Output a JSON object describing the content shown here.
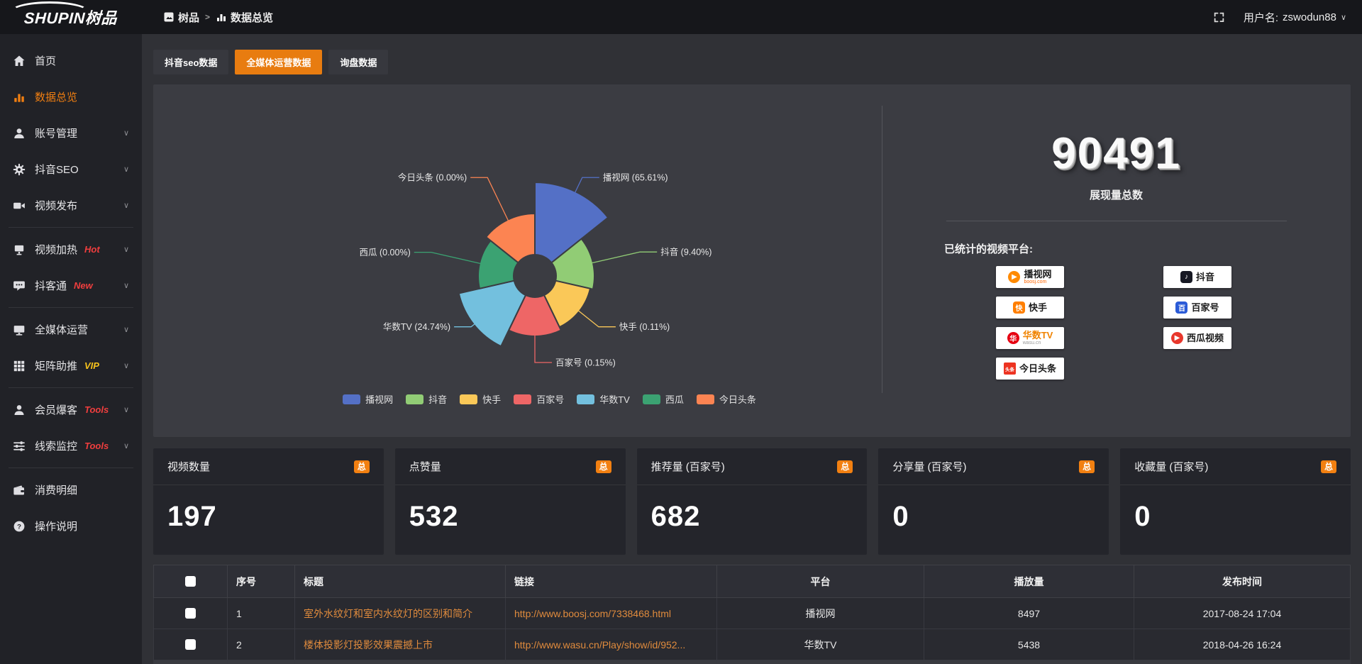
{
  "topbar": {
    "logo_text": "SHUPIN树品",
    "breadcrumb": {
      "root": "树品",
      "separator": ">",
      "current": "数据总览"
    },
    "user_label": "用户名:",
    "username": "zswodun88",
    "user_caret": "∨"
  },
  "sidebar": {
    "items": [
      {
        "id": "home",
        "icon": "home-icon",
        "label": "首页"
      },
      {
        "id": "data-overview",
        "icon": "bar-chart-icon",
        "label": "数据总览",
        "active": true
      },
      {
        "id": "account-manage",
        "icon": "user-icon",
        "label": "账号管理",
        "chevron": true
      },
      {
        "id": "douyin-seo",
        "icon": "gear-icon",
        "label": "抖音SEO",
        "chevron": true
      },
      {
        "id": "video-publish",
        "icon": "video-camera-icon",
        "label": "视频发布",
        "chevron": true,
        "divider_after": true
      },
      {
        "id": "video-heat",
        "icon": "display-icon",
        "label": "视频加热",
        "badge": "Hot",
        "badge_color": "#f03e3e",
        "chevron": true
      },
      {
        "id": "douketong",
        "icon": "chat-icon",
        "label": "抖客通",
        "badge": "New",
        "badge_color": "#f03e3e",
        "chevron": true,
        "divider_after": true
      },
      {
        "id": "omni-media",
        "icon": "monitor-icon",
        "label": "全媒体运营",
        "chevron": true
      },
      {
        "id": "matrix-boost",
        "icon": "grid-icon",
        "label": "矩阵助推",
        "badge": "VIP",
        "badge_color": "#f6c21c",
        "chevron": true,
        "divider_after": true
      },
      {
        "id": "member-baoke",
        "icon": "member-icon",
        "label": "会员爆客",
        "badge": "Tools",
        "badge_color": "#f03e3e",
        "chevron": true
      },
      {
        "id": "clue-monitor",
        "icon": "sliders-icon",
        "label": "线索监控",
        "badge": "Tools",
        "badge_color": "#f03e3e",
        "chevron": true,
        "divider_after": true
      },
      {
        "id": "expense-detail",
        "icon": "wallet-icon",
        "label": "消费明细"
      },
      {
        "id": "help-guide",
        "icon": "help-icon",
        "label": "操作说明"
      }
    ]
  },
  "tabs": {
    "items": [
      {
        "id": "douyin-seo-data",
        "label": "抖音seo数据",
        "active": false
      },
      {
        "id": "omni-media-data",
        "label": "全媒体运营数据",
        "active": true
      },
      {
        "id": "inquiry-data",
        "label": "询盘数据",
        "active": false
      }
    ]
  },
  "chart_data": {
    "type": "pie",
    "subtype": "nightingale-rose-donut",
    "legend_position": "bottom",
    "label_format": "{name} ({percent}%)",
    "items": [
      {
        "name": "播视网",
        "percent": 65.61,
        "color": "#5470c6",
        "display_radius": 132
      },
      {
        "name": "抖音",
        "percent": 9.4,
        "color": "#91cc75",
        "display_radius": 84
      },
      {
        "name": "快手",
        "percent": 0.11,
        "color": "#fac858",
        "display_radius": 80
      },
      {
        "name": "百家号",
        "percent": 0.15,
        "color": "#ee6666",
        "display_radius": 85
      },
      {
        "name": "华数TV",
        "percent": 24.74,
        "color": "#73c0de",
        "display_radius": 110
      },
      {
        "name": "西瓜",
        "percent": 0.0,
        "color": "#3ba272",
        "display_radius": 80
      },
      {
        "name": "今日头条",
        "percent": 0.0,
        "color": "#fc8452",
        "display_radius": 88
      }
    ]
  },
  "summary": {
    "total_value": "90491",
    "total_label": "展现量总数",
    "platforms_title": "已统计的视频平台:",
    "platforms": [
      {
        "name": "播视网",
        "sub": "boosj.com",
        "sub_color": "#ff6600",
        "icon": "boosj-play-icon",
        "glyph": "▶",
        "color": "#ff8a00",
        "shape": "circle"
      },
      {
        "name": "抖音",
        "icon": "douyin-note-icon",
        "glyph": "♪",
        "color": "#161823",
        "shape": "rounded"
      },
      {
        "name": "快手",
        "icon": "kuaishou-icon",
        "glyph": "快",
        "color": "#ff7f00",
        "shape": "rounded"
      },
      {
        "name": "百家号",
        "icon": "baijiahao-icon",
        "glyph": "百",
        "color": "#2b5bd7",
        "shape": "rounded"
      },
      {
        "name": "华数TV",
        "name_color": "#f08300",
        "sub": "wasu.cn",
        "sub_color": "#999999",
        "icon": "wasu-icon",
        "glyph": "华",
        "color": "#e60012",
        "shape": "circle"
      },
      {
        "name": "西瓜视频",
        "icon": "xigua-play-icon",
        "glyph": "▶",
        "color": "#e8372c",
        "shape": "circle"
      },
      {
        "name": "今日头条",
        "icon": "toutiao-icon",
        "glyph": "头条",
        "color": "#ed3321",
        "shape": "square"
      }
    ]
  },
  "stat_cards": [
    {
      "title": "视频数量",
      "tag": "总",
      "value": "197"
    },
    {
      "title": "点赞量",
      "tag": "总",
      "value": "532"
    },
    {
      "title": "推荐量 (百家号)",
      "tag": "总",
      "value": "682"
    },
    {
      "title": "分享量 (百家号)",
      "tag": "总",
      "value": "0"
    },
    {
      "title": "收藏量 (百家号)",
      "tag": "总",
      "value": "0"
    }
  ],
  "table": {
    "headers": [
      "序号",
      "标题",
      "链接",
      "平台",
      "播放量",
      "发布时间"
    ],
    "rows": [
      {
        "seq": "1",
        "title": "室外水纹灯和室内水纹灯的区别和简介",
        "link": "http://www.boosj.com/7338468.html",
        "platform": "播视网",
        "views": "8497",
        "time": "2017-08-24 17:04"
      },
      {
        "seq": "2",
        "title": "楼体投影灯投影效果震撼上市",
        "link": "http://www.wasu.cn/Play/show/id/952...",
        "platform": "华数TV",
        "views": "5438",
        "time": "2018-04-26 16:24"
      }
    ]
  }
}
